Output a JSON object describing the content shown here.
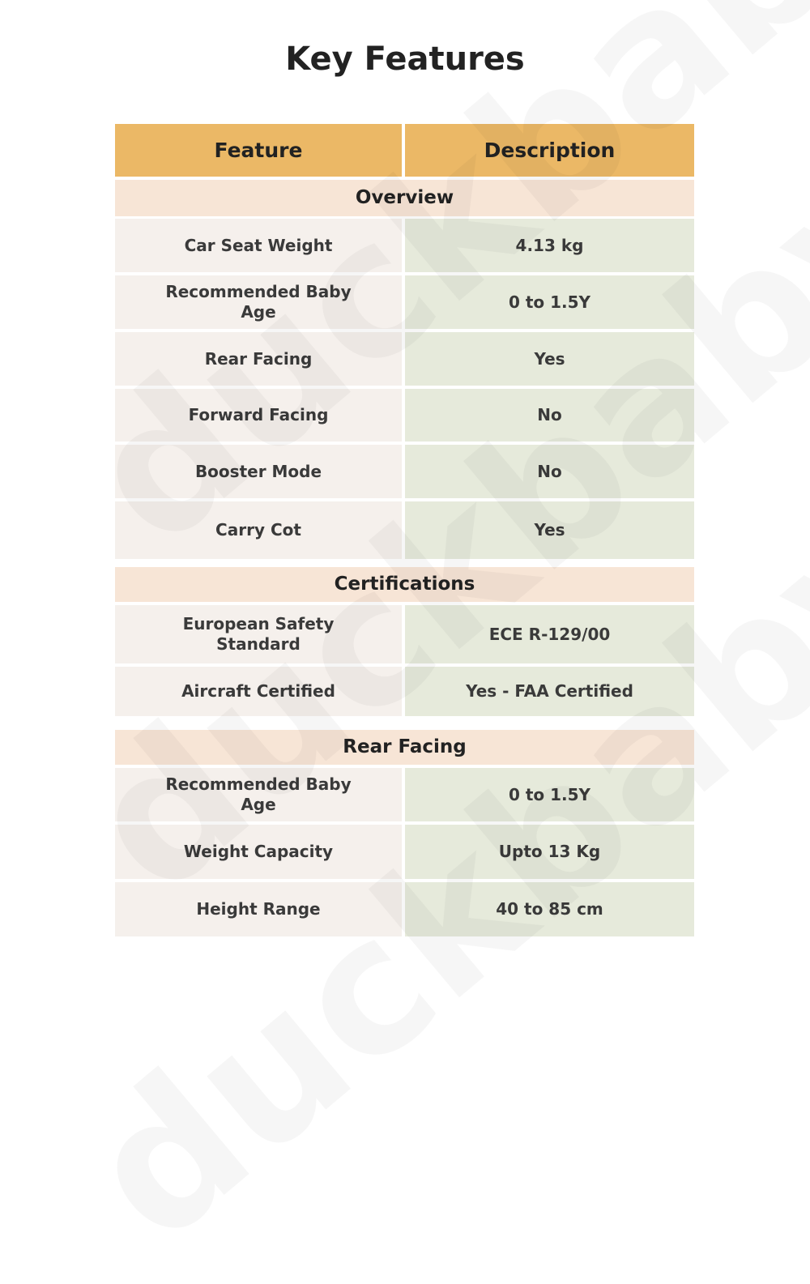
{
  "title": "Key Features",
  "header": {
    "feature": "Feature",
    "description": "Description"
  },
  "sections": [
    {
      "name": "Overview",
      "rows": [
        {
          "feature": "Car Seat Weight",
          "description": "4.13 kg"
        },
        {
          "feature": "Recommended Baby Age",
          "description": "0 to 1.5Y"
        },
        {
          "feature": "Rear Facing",
          "description": "Yes"
        },
        {
          "feature": "Forward Facing",
          "description": "No"
        },
        {
          "feature": "Booster Mode",
          "description": "No"
        },
        {
          "feature": "Carry Cot",
          "description": "Yes"
        }
      ]
    },
    {
      "name": "Certifications",
      "rows": [
        {
          "feature": "European Safety Standard",
          "description": "ECE R-129/00"
        },
        {
          "feature": "Aircraft Certified",
          "description": "Yes - FAA Certified"
        }
      ]
    },
    {
      "name": "Rear Facing",
      "rows": [
        {
          "feature": "Recommended Baby Age",
          "description": "0 to 1.5Y"
        },
        {
          "feature": "Weight Capacity",
          "description": "Upto 13 Kg"
        },
        {
          "feature": "Height Range",
          "description": "40 to 85 cm"
        }
      ]
    }
  ],
  "watermark": "duckbaby",
  "colors": {
    "header": "#EBB866",
    "section": "#F7E5D6",
    "feature_cell": "#F5F0EC",
    "description_cell": "#E6EADB"
  }
}
